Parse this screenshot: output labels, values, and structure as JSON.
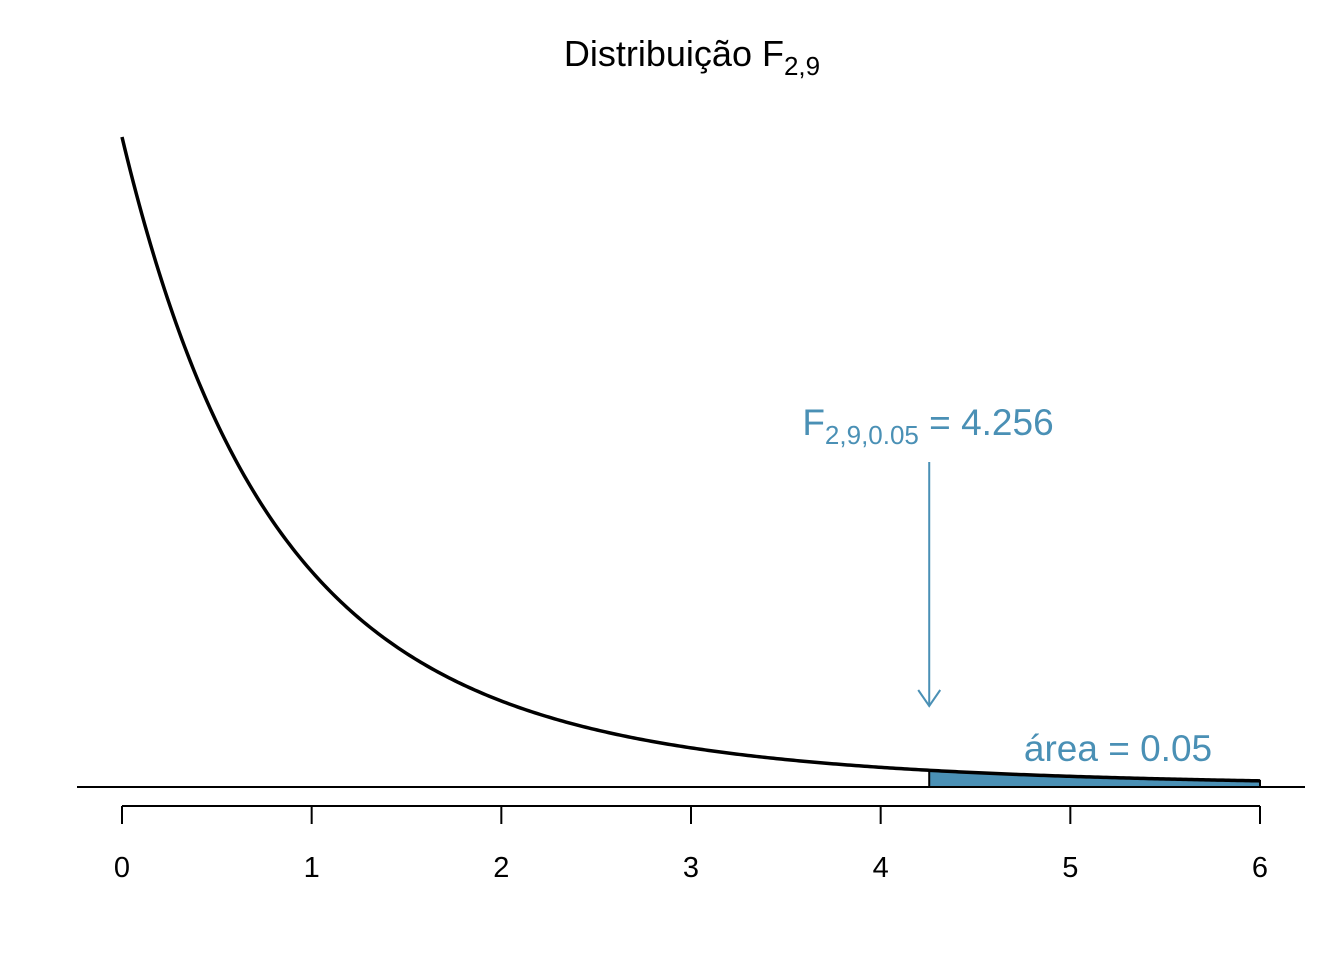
{
  "chart_data": {
    "type": "area",
    "title": {
      "main": "Distribuição F",
      "subscript": "2,9"
    },
    "distribution": {
      "family": "F",
      "df1": 2,
      "df2": 9
    },
    "x_axis": {
      "range": [
        0,
        6
      ],
      "ticks": [
        0,
        1,
        2,
        3,
        4,
        5,
        6
      ],
      "tick_labels": [
        "0",
        "1",
        "2",
        "3",
        "4",
        "5",
        "6"
      ]
    },
    "shaded_region": {
      "from": 4.256,
      "to": 6,
      "area": 0.05
    },
    "critical_annotation": {
      "value": 4.256,
      "label_main": "F",
      "label_subscript": "2,9,0.05",
      "label_rest": " = 4.256"
    },
    "area_label": "área = 0.05",
    "colors": {
      "accent": "#4a90b5",
      "curve": "#000000",
      "axis": "#000000"
    },
    "grid": false
  }
}
